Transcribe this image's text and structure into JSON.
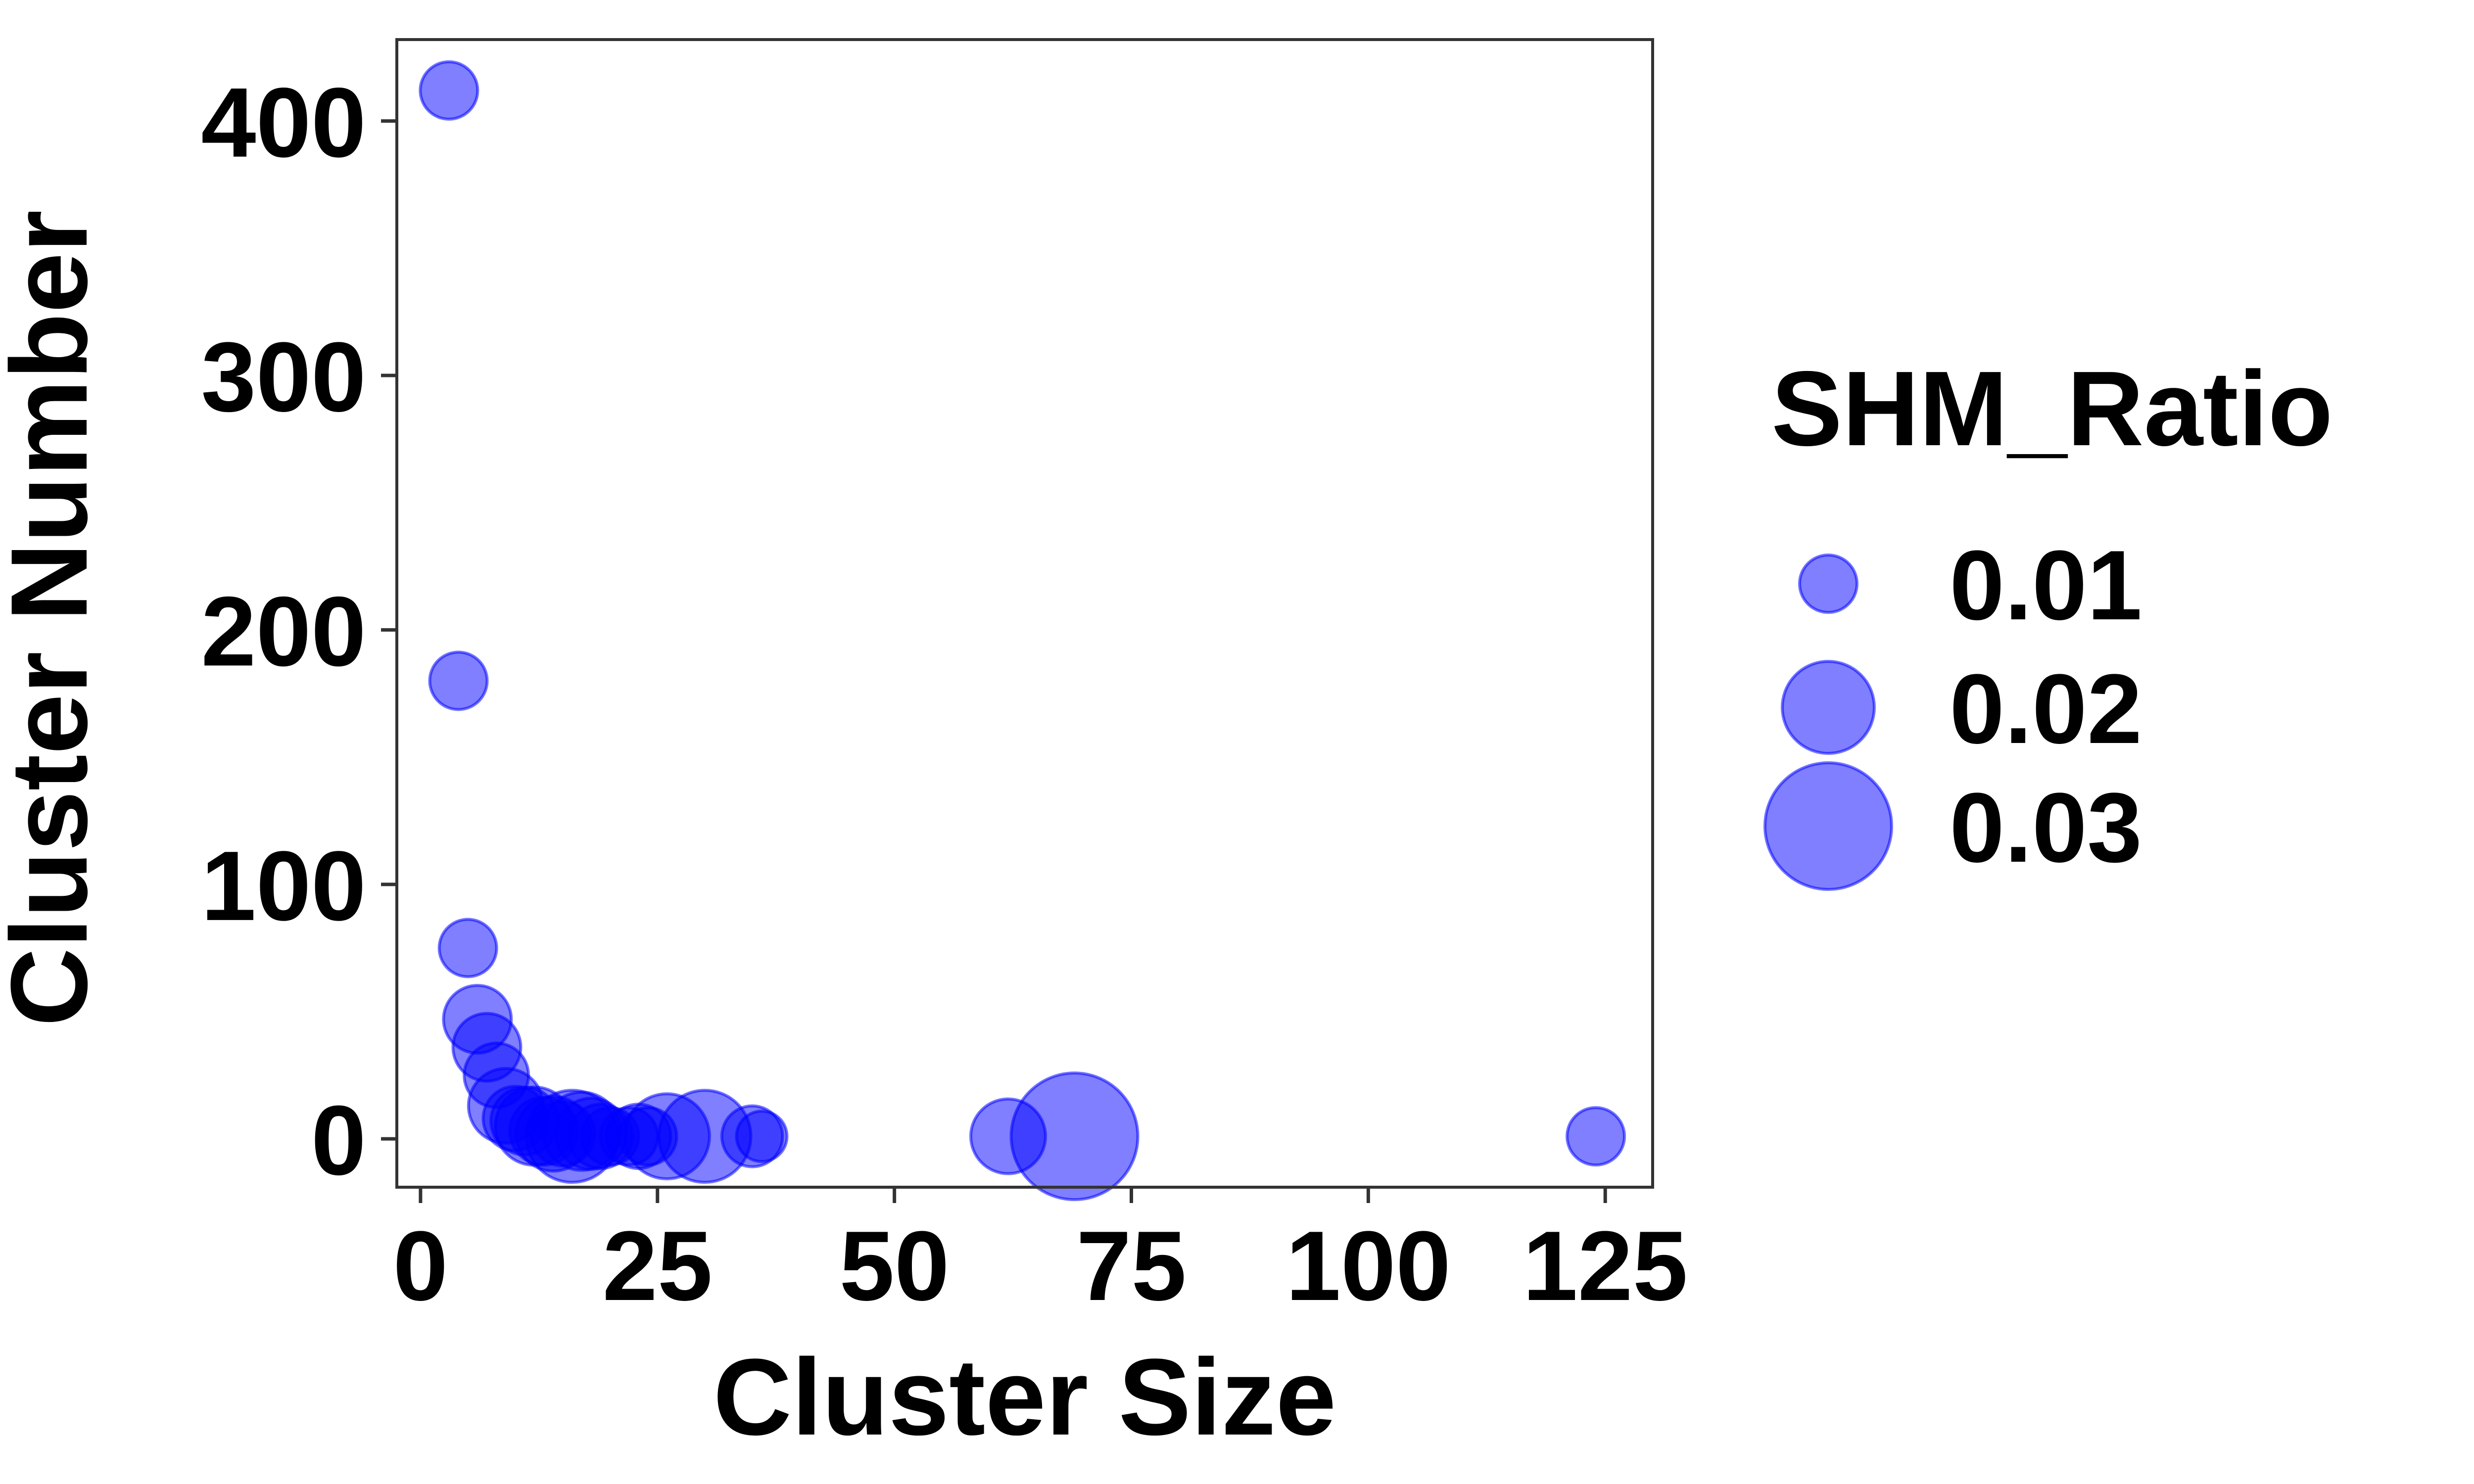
{
  "chart_data": {
    "type": "scatter",
    "xlabel": "Cluster Size",
    "ylabel": "Cluster Number",
    "xlim": [
      -2.5,
      130
    ],
    "ylim": [
      -19,
      432
    ],
    "xticks": [
      0,
      25,
      50,
      75,
      100,
      125
    ],
    "yticks": [
      0,
      100,
      200,
      300,
      400
    ],
    "grid": false,
    "legend": {
      "title": "SHM_Ratio",
      "position": "right",
      "entries": [
        {
          "label": "0.01",
          "size": 0.01
        },
        {
          "label": "0.02",
          "size": 0.02
        },
        {
          "label": "0.03",
          "size": 0.03
        }
      ]
    },
    "point_color": "#0000FF",
    "point_opacity": 0.5,
    "points": [
      {
        "x": 3,
        "y": 412,
        "shm": 0.01
      },
      {
        "x": 4,
        "y": 180,
        "shm": 0.01
      },
      {
        "x": 5,
        "y": 75,
        "shm": 0.01
      },
      {
        "x": 6,
        "y": 47,
        "shm": 0.013
      },
      {
        "x": 7,
        "y": 36,
        "shm": 0.013
      },
      {
        "x": 8,
        "y": 25,
        "shm": 0.012
      },
      {
        "x": 9,
        "y": 13,
        "shm": 0.015
      },
      {
        "x": 10,
        "y": 8,
        "shm": 0.012
      },
      {
        "x": 11,
        "y": 7,
        "shm": 0.013
      },
      {
        "x": 12,
        "y": 5,
        "shm": 0.016
      },
      {
        "x": 13,
        "y": 3,
        "shm": 0.013
      },
      {
        "x": 14,
        "y": 2,
        "shm": 0.015
      },
      {
        "x": 15,
        "y": 2,
        "shm": 0.012
      },
      {
        "x": 16,
        "y": 1,
        "shm": 0.02
      },
      {
        "x": 17,
        "y": 3,
        "shm": 0.016
      },
      {
        "x": 18,
        "y": 2,
        "shm": 0.014
      },
      {
        "x": 19,
        "y": 1,
        "shm": 0.012
      },
      {
        "x": 20,
        "y": 1,
        "shm": 0.01
      },
      {
        "x": 22,
        "y": 1,
        "shm": 0.01
      },
      {
        "x": 23,
        "y": 1,
        "shm": 0.012
      },
      {
        "x": 24,
        "y": 1,
        "shm": 0.01
      },
      {
        "x": 26,
        "y": 1,
        "shm": 0.018
      },
      {
        "x": 30,
        "y": 1,
        "shm": 0.02
      },
      {
        "x": 35,
        "y": 1,
        "shm": 0.011
      },
      {
        "x": 36,
        "y": 1,
        "shm": 0.008
      },
      {
        "x": 62,
        "y": 1,
        "shm": 0.015
      },
      {
        "x": 69,
        "y": 1,
        "shm": 0.03
      },
      {
        "x": 124,
        "y": 1,
        "shm": 0.01
      }
    ]
  }
}
